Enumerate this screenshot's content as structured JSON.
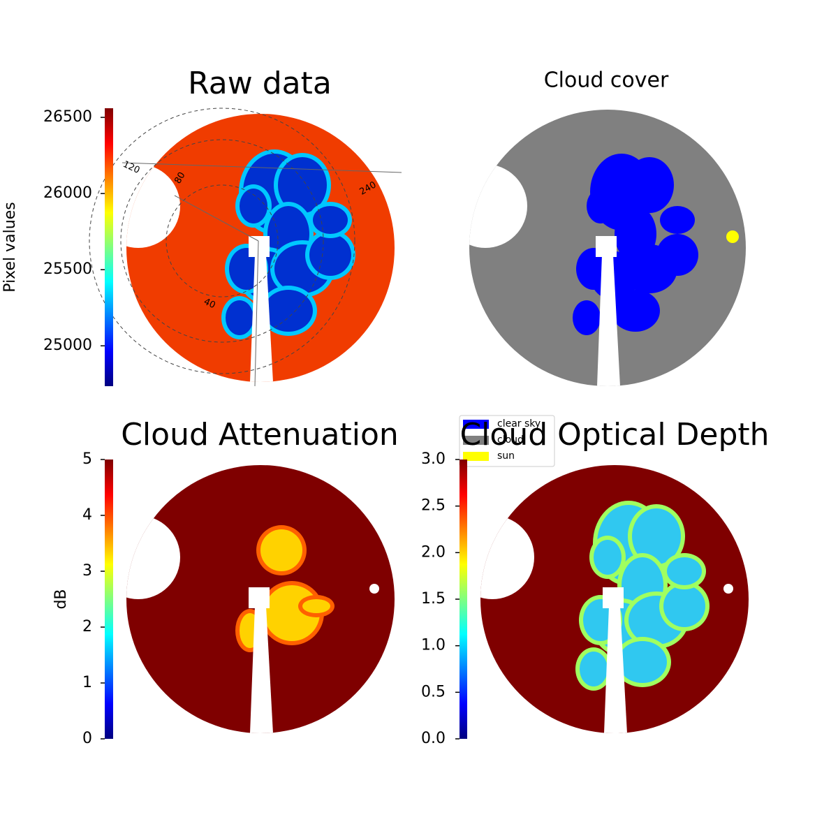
{
  "chart_data": [
    {
      "type": "image",
      "title": "Raw data",
      "colorbar_label": "Pixel values",
      "colormap": "jet",
      "ylim": [
        24735,
        26560
      ],
      "yticks": [
        25000,
        25500,
        26000,
        26500
      ],
      "annotations": [
        "120",
        "80",
        "40",
        "240"
      ]
    },
    {
      "type": "image",
      "title": "Cloud cover",
      "legend": "lower left",
      "series": [
        {
          "name": "clear sky",
          "color": "#0000ff"
        },
        {
          "name": "cloud",
          "color": "#808080"
        },
        {
          "name": "sun",
          "color": "#ffff00"
        }
      ]
    },
    {
      "type": "image",
      "title": "Cloud Attenuation",
      "colorbar_label": "dB",
      "colormap": "jet",
      "ylim": [
        0,
        5
      ],
      "yticks": [
        0,
        1,
        2,
        3,
        4,
        5
      ]
    },
    {
      "type": "image",
      "title": "Cloud Optical Depth",
      "colormap": "jet",
      "ylim": [
        0,
        3
      ],
      "yticks": [
        {
          "value": 0,
          "label": "0.0"
        },
        {
          "value": 0.5,
          "label": "0.5"
        },
        {
          "value": 1,
          "label": "1.0"
        },
        {
          "value": 1.5,
          "label": "1.5"
        },
        {
          "value": 2,
          "label": "2.0"
        },
        {
          "value": 2.5,
          "label": "2.5"
        },
        {
          "value": 3,
          "label": "3.0"
        }
      ]
    }
  ]
}
